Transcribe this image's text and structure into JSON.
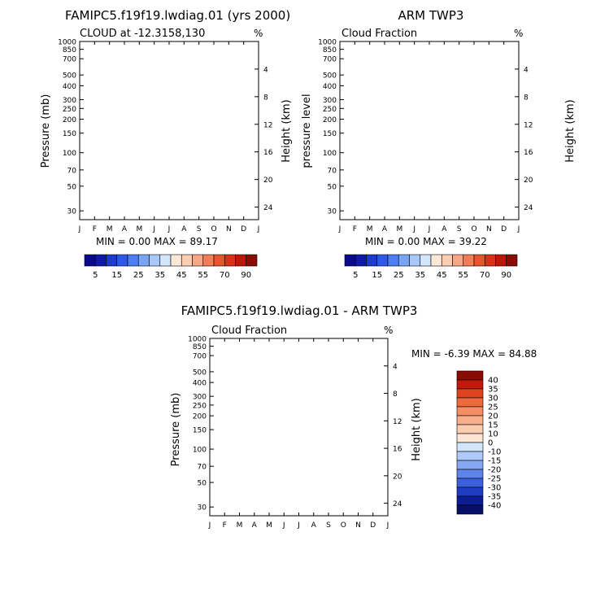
{
  "chart_data": [
    {
      "type": "heatmap",
      "title": "FAMIPC5.f19f19.lwdiag.01 (yrs 2000)",
      "subtitle": "CLOUD at -12.3158,130",
      "units": "%",
      "ylabel": "Pressure (mb)",
      "y2label": "Height (km)",
      "stats": "MIN =    0.00 MAX =  89.17",
      "x_ticks": [
        "J",
        "F",
        "M",
        "A",
        "M",
        "J",
        "J",
        "A",
        "S",
        "O",
        "N",
        "D",
        "J"
      ],
      "y_ticks": [
        "30",
        "50",
        "70",
        "100",
        "150",
        "200",
        "250",
        "300",
        "400",
        "500",
        "700",
        "850",
        "1000"
      ],
      "y2_ticks": [
        "24",
        "20",
        "16",
        "12",
        "8",
        "4"
      ],
      "colorbar_labels": [
        "5",
        "15",
        "25",
        "35",
        "45",
        "55",
        "70",
        "90"
      ],
      "ylim": [
        1000,
        25
      ],
      "field": "model_cloud",
      "missing_months": []
    },
    {
      "type": "heatmap",
      "title": "ARM TWP3",
      "subtitle": "Cloud Fraction",
      "units": "%",
      "ylabel": "pressure level",
      "y2label": "Height (km)",
      "stats": "MIN =    0.00 MAX =  39.22",
      "x_ticks": [
        "J",
        "F",
        "M",
        "A",
        "M",
        "J",
        "J",
        "A",
        "S",
        "O",
        "N",
        "D",
        "J"
      ],
      "y_ticks": [
        "30",
        "50",
        "70",
        "100",
        "150",
        "200",
        "250",
        "300",
        "400",
        "500",
        "700",
        "850",
        "1000"
      ],
      "y2_ticks": [
        "24",
        "20",
        "16",
        "12",
        "8",
        "4"
      ],
      "colorbar_labels": [
        "5",
        "15",
        "25",
        "35",
        "45",
        "55",
        "70",
        "90"
      ],
      "ylim": [
        1000,
        25
      ],
      "field": "obs_cloud",
      "missing_months": [
        8.5,
        9.5
      ]
    },
    {
      "type": "heatmap",
      "title": "FAMIPC5.f19f19.lwdiag.01 - ARM TWP3",
      "subtitle": "Cloud Fraction",
      "units": "%",
      "ylabel": "Pressure (mb)",
      "y2label": "Height (km)",
      "stats": "MIN =   -6.39 MAX =  84.88",
      "x_ticks": [
        "J",
        "F",
        "M",
        "A",
        "M",
        "J",
        "J",
        "A",
        "S",
        "O",
        "N",
        "D",
        "J"
      ],
      "y_ticks": [
        "30",
        "50",
        "70",
        "100",
        "150",
        "200",
        "250",
        "300",
        "400",
        "500",
        "700",
        "850",
        "1000"
      ],
      "y2_ticks": [
        "24",
        "20",
        "16",
        "12",
        "8",
        "4"
      ],
      "colorbar_labels": [
        "40",
        "35",
        "30",
        "25",
        "20",
        "15",
        "10",
        "0",
        "-10",
        "-15",
        "-20",
        "-25",
        "-30",
        "-35",
        "-40"
      ],
      "ylim": [
        1000,
        25
      ],
      "field": "difference",
      "missing_months": [
        8.5,
        9.5
      ]
    }
  ],
  "palettes": {
    "cloud": [
      "#0a0a8a",
      "#0d1aa8",
      "#1a3ad0",
      "#2e5ae8",
      "#4a7ef2",
      "#7aa4f6",
      "#a8c8fa",
      "#d2e6fc",
      "#fde8d8",
      "#fbcdb2",
      "#f7a784",
      "#f07e58",
      "#e8542e",
      "#d83214",
      "#b81a08",
      "#8a0a04"
    ],
    "diff": [
      "#8a0a04",
      "#c01a0a",
      "#e0441c",
      "#ee6a3c",
      "#f48e64",
      "#f8b08c",
      "#fbcdb0",
      "#fde6d4",
      "#d2e6fc",
      "#aecaf8",
      "#86a8f4",
      "#5c84ec",
      "#3a60dc",
      "#1e3cc0",
      "#0c1c94",
      "#06106a"
    ]
  }
}
